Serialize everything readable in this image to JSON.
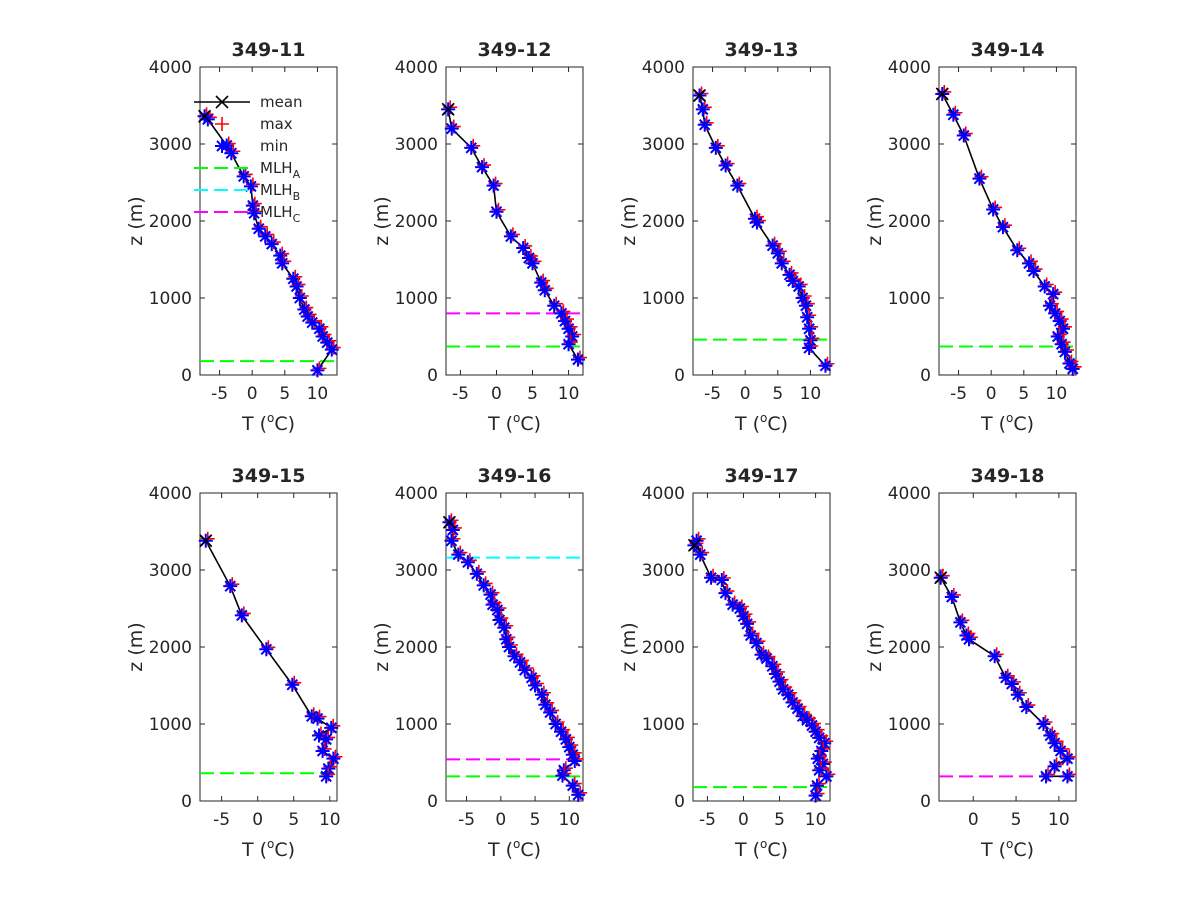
{
  "colors": {
    "mean": "#000000",
    "max": "#ff0000",
    "min": "#0000ff",
    "mlh_a": "#00ff00",
    "mlh_b": "#00ffff",
    "mlh_c": "#ff00ff"
  },
  "legend": {
    "mean": "mean",
    "max": "max",
    "min": "min",
    "mlh_a": "MLH",
    "mlh_a_sub": "A",
    "mlh_b": "MLH",
    "mlh_b_sub": "B",
    "mlh_c": "MLH",
    "mlh_c_sub": "C"
  },
  "chart_data": [
    {
      "type": "line",
      "title": "349-11",
      "xlabel": "T (",
      "xlabel_sup": "o",
      "xlabel_tail": "C)",
      "ylabel": "z (m)",
      "xlim": [
        -8,
        13
      ],
      "ylim": [
        0,
        4000
      ],
      "xticks": [
        -5,
        0,
        5,
        10
      ],
      "yticks": [
        0,
        1000,
        2000,
        3000,
        4000
      ],
      "legend": "top-left",
      "mlh": {
        "A": 180
      },
      "points": [
        [
          -7.3,
          3360
        ],
        [
          -6.8,
          3320
        ],
        [
          -3.9,
          2980
        ],
        [
          -3.2,
          2880
        ],
        [
          -1.3,
          2580
        ],
        [
          -0.2,
          2450
        ],
        [
          0.1,
          2200
        ],
        [
          0.3,
          2100
        ],
        [
          1.0,
          1900
        ],
        [
          2.0,
          1800
        ],
        [
          3.0,
          1700
        ],
        [
          4.3,
          1550
        ],
        [
          4.6,
          1450
        ],
        [
          6.3,
          1250
        ],
        [
          6.8,
          1150
        ],
        [
          7.3,
          1000
        ],
        [
          8.0,
          850
        ],
        [
          8.5,
          760
        ],
        [
          9.2,
          680
        ],
        [
          10.3,
          600
        ],
        [
          10.8,
          500
        ],
        [
          11.5,
          420
        ],
        [
          12.2,
          330
        ],
        [
          10.0,
          60
        ]
      ]
    },
    {
      "type": "line",
      "title": "349-12",
      "xlabel": "T (",
      "xlabel_sup": "o",
      "xlabel_tail": "C)",
      "ylabel": "z (m)",
      "xlim": [
        -7,
        12
      ],
      "ylim": [
        0,
        4000
      ],
      "xticks": [
        -5,
        0,
        5,
        10
      ],
      "yticks": [
        0,
        1000,
        2000,
        3000,
        4000
      ],
      "mlh": {
        "C": 800,
        "A": 370
      },
      "points": [
        [
          -6.7,
          3450
        ],
        [
          -6.2,
          3200
        ],
        [
          -3.5,
          2950
        ],
        [
          -2.0,
          2700
        ],
        [
          -0.4,
          2460
        ],
        [
          0.0,
          2120
        ],
        [
          2.0,
          1800
        ],
        [
          3.7,
          1650
        ],
        [
          4.5,
          1520
        ],
        [
          5.0,
          1450
        ],
        [
          6.2,
          1200
        ],
        [
          6.7,
          1100
        ],
        [
          8.0,
          900
        ],
        [
          9.0,
          800
        ],
        [
          9.5,
          700
        ],
        [
          10.0,
          600
        ],
        [
          10.5,
          500
        ],
        [
          10.0,
          400
        ],
        [
          11.3,
          200
        ]
      ]
    },
    {
      "type": "line",
      "title": "349-13",
      "xlabel": "T (",
      "xlabel_sup": "o",
      "xlabel_tail": "C)",
      "ylabel": "z (m)",
      "xlim": [
        -8,
        13
      ],
      "ylim": [
        0,
        4000
      ],
      "xticks": [
        -5,
        0,
        5,
        10
      ],
      "yticks": [
        0,
        1000,
        2000,
        3000,
        4000
      ],
      "mlh": {
        "A": 460
      },
      "points": [
        [
          -7.0,
          3630
        ],
        [
          -6.5,
          3450
        ],
        [
          -6.2,
          3250
        ],
        [
          -4.5,
          2950
        ],
        [
          -3.0,
          2720
        ],
        [
          -1.2,
          2460
        ],
        [
          1.5,
          2030
        ],
        [
          1.8,
          1980
        ],
        [
          4.2,
          1680
        ],
        [
          5.0,
          1580
        ],
        [
          5.6,
          1450
        ],
        [
          6.8,
          1300
        ],
        [
          7.3,
          1220
        ],
        [
          8.2,
          1150
        ],
        [
          8.8,
          1000
        ],
        [
          9.3,
          900
        ],
        [
          9.5,
          750
        ],
        [
          9.8,
          600
        ],
        [
          10.0,
          450
        ],
        [
          9.8,
          350
        ],
        [
          12.3,
          120
        ]
      ]
    },
    {
      "type": "line",
      "title": "349-14",
      "xlabel": "T (",
      "xlabel_sup": "o",
      "xlabel_tail": "C)",
      "ylabel": "z (m)",
      "xlim": [
        -8,
        13
      ],
      "ylim": [
        0,
        4000
      ],
      "xticks": [
        -5,
        0,
        5,
        10
      ],
      "yticks": [
        0,
        1000,
        2000,
        3000,
        4000
      ],
      "mlh": {
        "A": 370
      },
      "points": [
        [
          -7.5,
          3650
        ],
        [
          -5.8,
          3380
        ],
        [
          -4.2,
          3110
        ],
        [
          -1.8,
          2550
        ],
        [
          0.3,
          2150
        ],
        [
          1.8,
          1920
        ],
        [
          4.0,
          1620
        ],
        [
          5.8,
          1450
        ],
        [
          6.5,
          1350
        ],
        [
          8.2,
          1150
        ],
        [
          9.5,
          1050
        ],
        [
          9.0,
          900
        ],
        [
          9.8,
          800
        ],
        [
          10.5,
          700
        ],
        [
          11.0,
          600
        ],
        [
          10.2,
          500
        ],
        [
          10.8,
          400
        ],
        [
          11.3,
          300
        ],
        [
          12.0,
          150
        ],
        [
          12.5,
          80
        ]
      ]
    },
    {
      "type": "line",
      "title": "349-15",
      "xlabel": "T (",
      "xlabel_sup": "o",
      "xlabel_tail": "C)",
      "ylabel": "z (m)",
      "xlim": [
        -8,
        11
      ],
      "ylim": [
        0,
        4000
      ],
      "xticks": [
        -5,
        0,
        5,
        10
      ],
      "yticks": [
        0,
        1000,
        2000,
        3000,
        4000
      ],
      "mlh": {
        "A": 360
      },
      "points": [
        [
          -7.2,
          3380
        ],
        [
          -3.8,
          2790
        ],
        [
          -2.2,
          2410
        ],
        [
          1.2,
          1970
        ],
        [
          4.8,
          1510
        ],
        [
          7.5,
          1100
        ],
        [
          8.3,
          1070
        ],
        [
          10.2,
          950
        ],
        [
          8.5,
          850
        ],
        [
          9.5,
          800
        ],
        [
          9.0,
          650
        ],
        [
          10.5,
          550
        ],
        [
          9.8,
          420
        ],
        [
          9.5,
          320
        ]
      ]
    },
    {
      "type": "line",
      "title": "349-16",
      "xlabel": "T (",
      "xlabel_sup": "o",
      "xlabel_tail": "C)",
      "ylabel": "z (m)",
      "xlim": [
        -8,
        12
      ],
      "ylim": [
        0,
        4000
      ],
      "xticks": [
        -5,
        0,
        5,
        10
      ],
      "yticks": [
        0,
        1000,
        2000,
        3000,
        4000
      ],
      "mlh": {
        "B": 3160,
        "C": 540,
        "A": 320
      },
      "points": [
        [
          -7.5,
          3620
        ],
        [
          -7.0,
          3520
        ],
        [
          -7.2,
          3380
        ],
        [
          -6.2,
          3200
        ],
        [
          -4.8,
          3100
        ],
        [
          -3.5,
          2950
        ],
        [
          -2.5,
          2800
        ],
        [
          -1.5,
          2680
        ],
        [
          -1.2,
          2550
        ],
        [
          -0.5,
          2480
        ],
        [
          -0.2,
          2350
        ],
        [
          0.5,
          2250
        ],
        [
          0.8,
          2100
        ],
        [
          1.2,
          2000
        ],
        [
          2.0,
          1880
        ],
        [
          2.8,
          1800
        ],
        [
          3.5,
          1700
        ],
        [
          4.5,
          1600
        ],
        [
          5.0,
          1500
        ],
        [
          6.0,
          1380
        ],
        [
          6.5,
          1250
        ],
        [
          7.2,
          1150
        ],
        [
          8.0,
          1000
        ],
        [
          8.8,
          900
        ],
        [
          9.5,
          800
        ],
        [
          10.0,
          700
        ],
        [
          10.5,
          600
        ],
        [
          10.8,
          520
        ],
        [
          9.2,
          400
        ],
        [
          9.0,
          330
        ],
        [
          10.5,
          200
        ],
        [
          11.3,
          80
        ]
      ]
    },
    {
      "type": "line",
      "title": "349-17",
      "xlabel": "T (",
      "xlabel_sup": "o",
      "xlabel_tail": "C)",
      "ylabel": "z (m)",
      "xlim": [
        -7,
        12
      ],
      "ylim": [
        0,
        4000
      ],
      "xticks": [
        -5,
        0,
        5,
        10
      ],
      "yticks": [
        0,
        1000,
        2000,
        3000,
        4000
      ],
      "mlh": {
        "A": 180
      },
      "points": [
        [
          -6.8,
          3320
        ],
        [
          -6.5,
          3380
        ],
        [
          -6.0,
          3200
        ],
        [
          -4.5,
          2900
        ],
        [
          -3.0,
          2870
        ],
        [
          -2.5,
          2700
        ],
        [
          -1.5,
          2550
        ],
        [
          -0.5,
          2500
        ],
        [
          0.0,
          2400
        ],
        [
          0.5,
          2300
        ],
        [
          1.0,
          2150
        ],
        [
          1.8,
          2050
        ],
        [
          2.5,
          1900
        ],
        [
          3.2,
          1850
        ],
        [
          4.0,
          1750
        ],
        [
          4.5,
          1650
        ],
        [
          5.0,
          1550
        ],
        [
          5.5,
          1450
        ],
        [
          6.2,
          1380
        ],
        [
          6.8,
          1280
        ],
        [
          7.5,
          1200
        ],
        [
          8.2,
          1100
        ],
        [
          8.8,
          1050
        ],
        [
          9.5,
          980
        ],
        [
          10.0,
          900
        ],
        [
          10.5,
          820
        ],
        [
          11.2,
          750
        ],
        [
          10.8,
          650
        ],
        [
          10.3,
          550
        ],
        [
          11.0,
          480
        ],
        [
          10.5,
          400
        ],
        [
          11.5,
          320
        ],
        [
          10.2,
          200
        ],
        [
          10.0,
          70
        ]
      ]
    },
    {
      "type": "line",
      "title": "349-18",
      "xlabel": "T (",
      "xlabel_sup": "o",
      "xlabel_tail": "C)",
      "ylabel": "z (m)",
      "xlim": [
        -4,
        12
      ],
      "ylim": [
        0,
        4000
      ],
      "xticks": [
        0,
        5,
        10
      ],
      "yticks": [
        0,
        1000,
        2000,
        3000,
        4000
      ],
      "mlh": {
        "C": 320
      },
      "points": [
        [
          -3.8,
          2900
        ],
        [
          -2.5,
          2650
        ],
        [
          -1.5,
          2320
        ],
        [
          -0.8,
          2150
        ],
        [
          -0.5,
          2100
        ],
        [
          2.5,
          1880
        ],
        [
          3.8,
          1600
        ],
        [
          4.5,
          1520
        ],
        [
          5.2,
          1380
        ],
        [
          6.2,
          1220
        ],
        [
          8.2,
          1000
        ],
        [
          9.0,
          850
        ],
        [
          9.5,
          750
        ],
        [
          10.2,
          650
        ],
        [
          11.0,
          550
        ],
        [
          9.5,
          450
        ],
        [
          8.5,
          320
        ],
        [
          11.0,
          320
        ]
      ]
    }
  ]
}
